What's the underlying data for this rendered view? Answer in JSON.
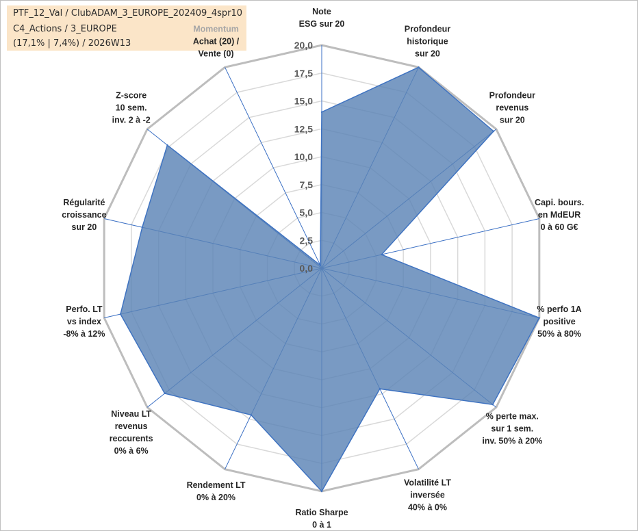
{
  "info": {
    "line1": "PTF_12_Val / ClubADAM_3_EUROPE_202409_4spr10",
    "line2": "C4_Actions / 3_EUROPE",
    "line3": "(17,1% | 7,4%) / 2026W13"
  },
  "colors": {
    "fill": "#5b84b6",
    "stroke": "#3f73c1",
    "grid_outer": "#bdbdbd",
    "grid_inner": "#d9d9d9",
    "spoke": "#3a6fc4",
    "info_bg": "#fbe5c8"
  },
  "chart_data": {
    "type": "radar",
    "rmax": 20,
    "ticks": [
      "0,0",
      "2,5",
      "5,0",
      "7,5",
      "10,0",
      "12,5",
      "15,0",
      "17,5",
      "20,0"
    ],
    "axes": [
      {
        "name": "Note ESG sur 20",
        "lines": [
          "Note",
          "ESG sur 20"
        ],
        "value": 14.0
      },
      {
        "name": "Profondeur historique sur 20",
        "lines": [
          "Profondeur",
          "historique",
          "sur 20"
        ],
        "value": 20.0
      },
      {
        "name": "Profondeur revenus sur 20",
        "lines": [
          "Profondeur",
          "revenus",
          "sur 20"
        ],
        "value": 19.7
      },
      {
        "name": "Capi. bours. en MdEUR 0 à 60 G€",
        "lines": [
          "Capi. bours.",
          "en MdEUR",
          "0 à 60 G€"
        ],
        "value": 5.5
      },
      {
        "name": "% perfo 1A positive 50% à 80%",
        "lines": [
          "% perfo 1A",
          "positive",
          "50% à 80%"
        ],
        "value": 20.0
      },
      {
        "name": "% perte max. sur 1 sem. inv. 50% à 20%",
        "lines": [
          "% perte max.",
          "sur 1 sem.",
          "inv. 50% à 20%"
        ],
        "value": 19.6
      },
      {
        "name": "Volatilité LT inversée 40% à 0%",
        "lines": [
          "Volatilité LT",
          "inversée",
          "40% à 0%"
        ],
        "value": 12.0
      },
      {
        "name": "Ratio Sharpe 0 à 1",
        "lines": [
          "Ratio Sharpe",
          "0 à 1"
        ],
        "value": 20.0
      },
      {
        "name": "Rendement LT 0% à 20%",
        "lines": [
          "Rendement LT",
          "0% à 20%"
        ],
        "value": 14.6
      },
      {
        "name": "Niveau LT revenus reccurents 0% à 6%",
        "lines": [
          "Niveau LT",
          "revenus",
          "reccurents",
          "0% à 6%"
        ],
        "value": 18.0
      },
      {
        "name": "Perfo. LT vs index -8% à 12%",
        "lines": [
          "Perfo. LT",
          "vs index",
          "-8% à 12%"
        ],
        "value": 18.5
      },
      {
        "name": "Régularité croissance sur 20",
        "lines": [
          "Régularité",
          "croissance",
          "sur 20"
        ],
        "value": 16.5
      },
      {
        "name": "Z-score 10 sem. inv. 2 à -2",
        "lines": [
          "Z-score",
          "10 sem.",
          "inv. 2 à -2"
        ],
        "value": 17.7
      },
      {
        "name": "Momentum Achat (20) / Vente (0)",
        "lines": [
          "Momentum",
          "Achat (20) /",
          "Vente (0)"
        ],
        "value": 0.3
      }
    ]
  }
}
